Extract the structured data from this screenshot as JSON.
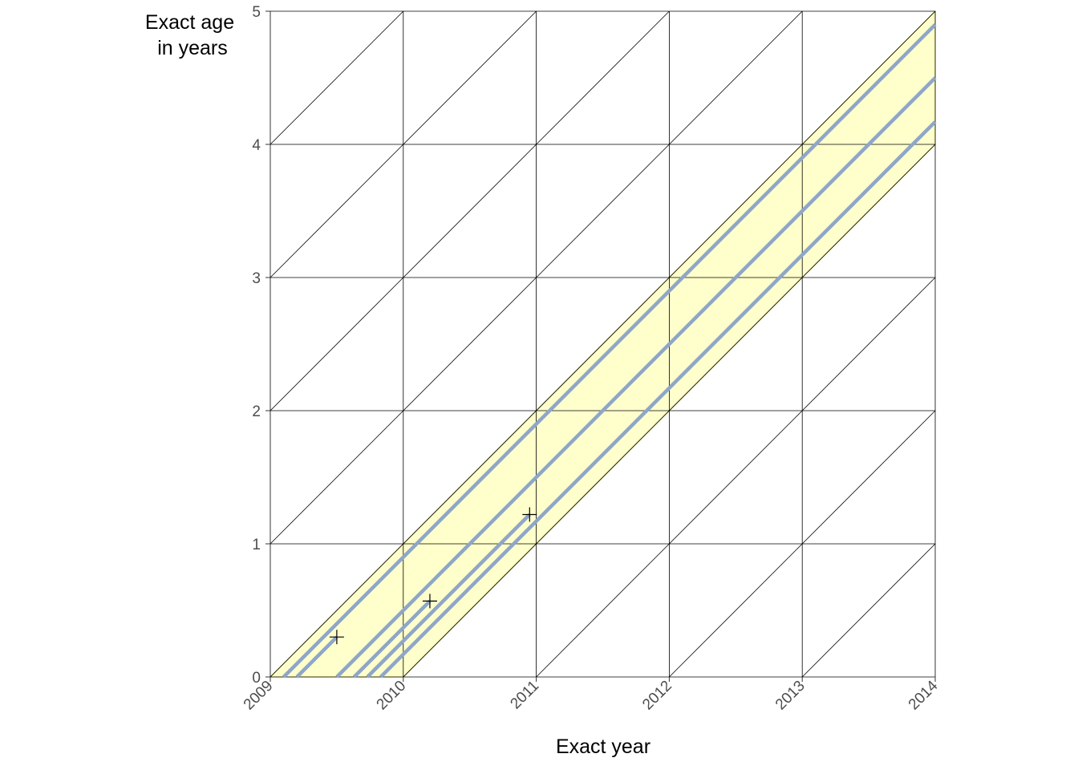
{
  "chart_data": {
    "type": "scatter",
    "title": "",
    "xlabel": "Exact year",
    "ylabel": [
      "Exact age",
      "in years"
    ],
    "xlim": [
      2009,
      2014
    ],
    "ylim": [
      0,
      5
    ],
    "x_ticks": [
      "2009",
      "2010",
      "2011",
      "2012",
      "2013",
      "2014"
    ],
    "y_ticks": [
      "0",
      "1",
      "2",
      "3",
      "4",
      "5"
    ],
    "grid": true,
    "legend": "none",
    "cohort_band": {
      "birth_start": 2009.0,
      "birth_end": 2010.0
    },
    "life_lines": [
      {
        "birth": 2009.1,
        "end_year": 2014.0
      },
      {
        "birth": 2009.5,
        "end_year": 2014.0
      },
      {
        "birth": 2009.83,
        "end_year": 2014.0
      },
      {
        "birth": 2009.2,
        "end_year": 2009.5
      },
      {
        "birth": 2009.63,
        "end_year": 2010.2
      },
      {
        "birth": 2009.73,
        "end_year": 2010.95
      }
    ],
    "events": [
      {
        "x": 2009.5,
        "y": 0.3
      },
      {
        "x": 2010.2,
        "y": 0.57
      },
      {
        "x": 2010.95,
        "y": 1.22
      }
    ],
    "colors": {
      "band_fill": "#ffffcc",
      "band_edge": "#b3b300",
      "life_line": "#8ea6c8",
      "grid": "#000000",
      "marker": "#000000"
    }
  }
}
